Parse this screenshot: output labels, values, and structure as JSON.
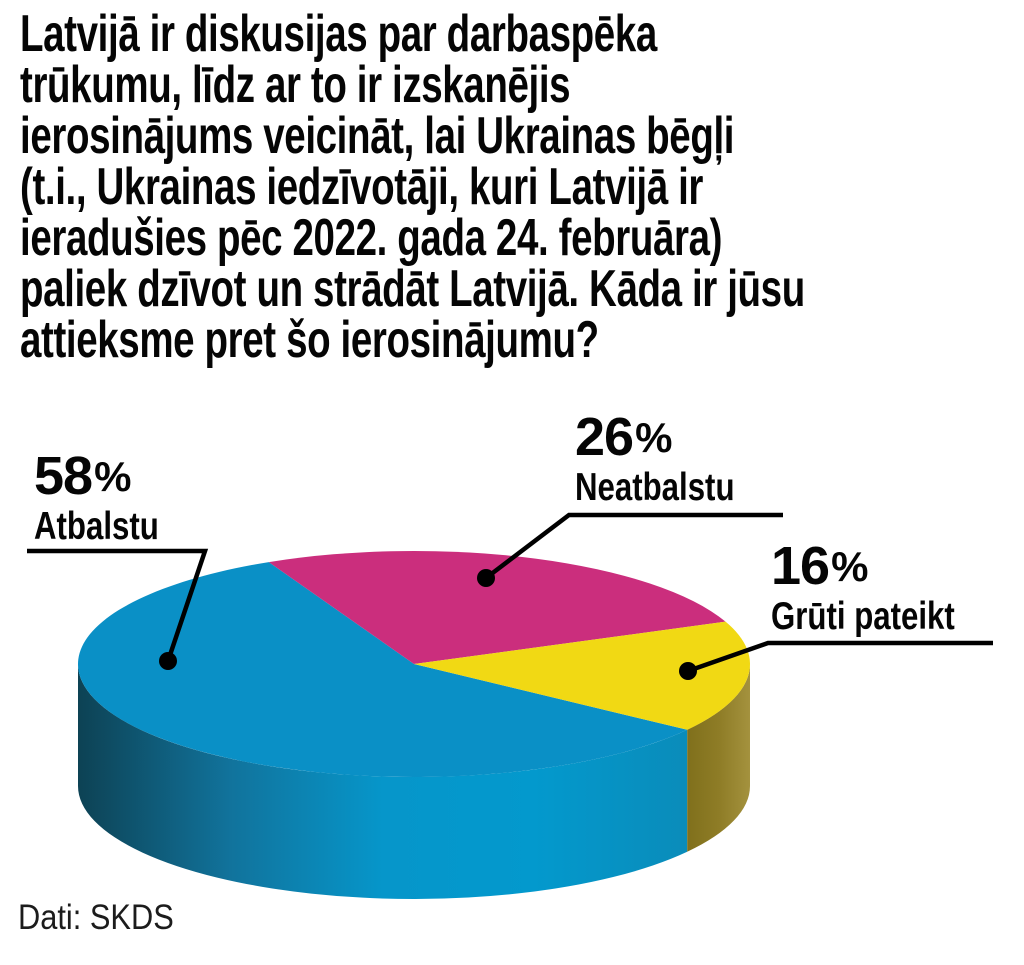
{
  "title": {
    "lines": [
      "Latvijā ir diskusijas par darbaspēka",
      "trūkumu, līdz ar to ir izskanējis",
      "ierosinājums veicināt, lai Ukrainas bēgļi",
      "(t.i., Ukrainas iedzīvotāji, kuri Latvijā ir",
      "ieradušies pēc 2022. gada 24. februāra)",
      "paliek dzīvot un strādāt Latvijā. Kāda ir jūsu",
      "attieksme pret šo ierosinājumu?"
    ]
  },
  "chart_data": {
    "type": "pie",
    "style": "3d",
    "labels": [
      "Atbalstu",
      "Neatbalstu",
      "Grūti pateikt"
    ],
    "values": [
      58,
      26,
      16
    ],
    "unit": "%",
    "colors": [
      "#0a90c6",
      "#cb2e7d",
      "#f1d914"
    ],
    "side_gradients": [
      [
        "#0d4254",
        "#11739c",
        "#0696ca",
        "#0399cd",
        "#0a8cba"
      ],
      null,
      [
        "#80701c",
        "#8e7c26",
        "#a4923e"
      ]
    ],
    "start_angle_deg": 35.6,
    "legend_position": "callout-labels",
    "text_color": "#050505",
    "leader_line_color": "#000000"
  },
  "source": "Dati: SKDS"
}
